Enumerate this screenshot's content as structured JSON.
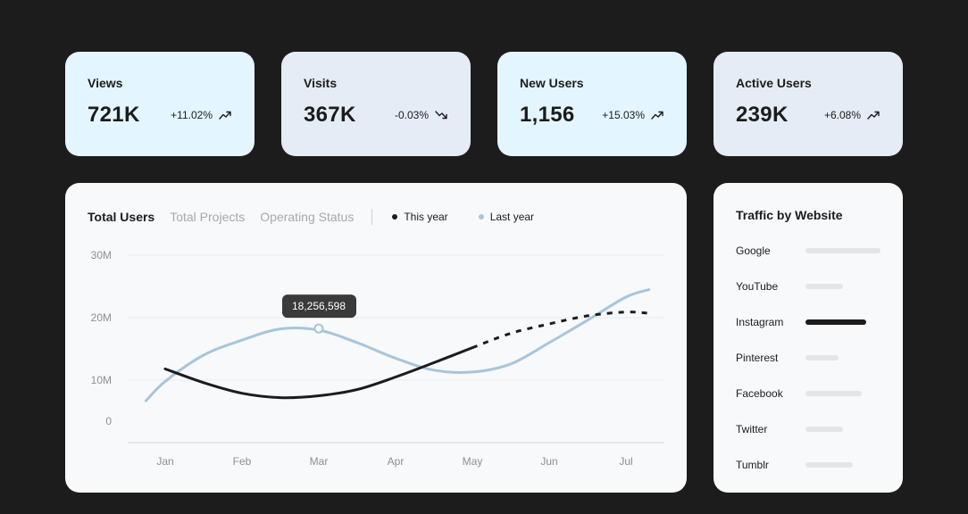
{
  "stats": [
    {
      "title": "Views",
      "value": "721K",
      "change": "+11.02%",
      "trend": "up",
      "icon": "arrow-rise-icon"
    },
    {
      "title": "Visits",
      "value": "367K",
      "change": "-0.03%",
      "trend": "down",
      "icon": "arrow-fall-icon"
    },
    {
      "title": "New Users",
      "value": "1,156",
      "change": "+15.03%",
      "trend": "up",
      "icon": "arrow-rise-icon"
    },
    {
      "title": "Active Users",
      "value": "239K",
      "change": "+6.08%",
      "trend": "up",
      "icon": "arrow-rise-icon"
    }
  ],
  "chart": {
    "tabs": [
      "Total Users",
      "Total Projects",
      "Operating Status"
    ],
    "active_tab": 0,
    "legend": [
      {
        "label": "This year",
        "color": "#1c1c1c"
      },
      {
        "label": "Last year",
        "color": "#a8c5da"
      }
    ],
    "tooltip": "18,256,598"
  },
  "chart_data": {
    "type": "line",
    "title": "",
    "xlabel": "",
    "ylabel": "",
    "categories": [
      "Jan",
      "Feb",
      "Mar",
      "Apr",
      "May",
      "Jun",
      "Jul"
    ],
    "y_ticks": [
      "30M",
      "20M",
      "10M",
      "0"
    ],
    "ylim": [
      0,
      30
    ],
    "grid": true,
    "legend_position": "top",
    "series": [
      {
        "name": "This year",
        "color": "#1c1c1c",
        "x": [
          0,
          0.5,
          1,
          1.5,
          2,
          2.5,
          3,
          3.5,
          4,
          4.5,
          5,
          5.5,
          6,
          6.3
        ],
        "values": [
          11.8,
          9.6,
          7.9,
          7.2,
          7.5,
          8.5,
          10.5,
          12.8,
          15.2,
          17.5,
          19.0,
          20.3,
          20.9,
          20.7
        ],
        "dashed_from_x": 4
      },
      {
        "name": "Last year",
        "color": "#a8c5da",
        "x": [
          -0.25,
          0,
          0.5,
          1,
          1.5,
          2,
          2.5,
          3,
          3.5,
          4,
          4.5,
          5,
          5.5,
          6,
          6.3
        ],
        "values": [
          6.7,
          9.8,
          14.0,
          16.4,
          18.2,
          18.0,
          16.0,
          13.5,
          11.6,
          11.3,
          12.6,
          16.0,
          19.6,
          23.3,
          24.5
        ]
      }
    ],
    "tooltip_point": {
      "x": 2,
      "y": 18.26,
      "label": "18,256,598"
    }
  },
  "traffic": {
    "title": "Traffic by Website",
    "items": [
      {
        "name": "Google",
        "share": 1.0,
        "highlight": false
      },
      {
        "name": "YouTube",
        "share": 0.5,
        "highlight": false
      },
      {
        "name": "Instagram",
        "share": 0.81,
        "highlight": true
      },
      {
        "name": "Pinterest",
        "share": 0.44,
        "highlight": false
      },
      {
        "name": "Facebook",
        "share": 0.75,
        "highlight": false
      },
      {
        "name": "Twitter",
        "share": 0.5,
        "highlight": false
      },
      {
        "name": "Tumblr",
        "share": 0.63,
        "highlight": false
      }
    ]
  }
}
